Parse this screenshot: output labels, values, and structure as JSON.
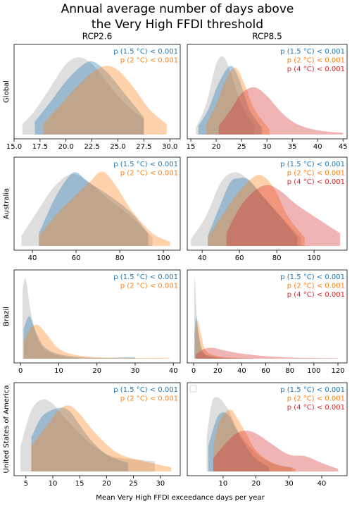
{
  "title": [
    "Annual average number of days above",
    "the Very High FFDI threshold"
  ],
  "xlabel": "Mean Very High FFDI exceedance days per year",
  "chart_data": [
    {
      "type": "area",
      "title": "RCP2.6",
      "ylabel": "Global",
      "xlim": [
        15,
        31
      ],
      "ylim": [
        -0.05,
        1.05
      ],
      "xticks": [
        {
          "value": 15,
          "label": "15.0"
        },
        17.5,
        {
          "value": 20,
          "label": "20.0"
        },
        22.5,
        {
          "value": 25,
          "label": "25.0"
        },
        27.5,
        {
          "value": 30,
          "label": "30.0"
        }
      ],
      "annotations": [
        {
          "text": "p (1.5 °C) < 0.001",
          "color": "#1f77b4"
        },
        {
          "text": "p (2 °C) < 0.001",
          "color": "#ff7f0e"
        }
      ],
      "series": [
        {
          "color": "#a0a0a0",
          "x": [
            15.8,
            17,
            18.5,
            20,
            21.2,
            22.5,
            24,
            25.5,
            27.5
          ],
          "values": [
            0.12,
            0.28,
            0.55,
            0.82,
            0.9,
            0.82,
            0.6,
            0.38,
            0.18
          ]
        },
        {
          "color": "#1f77b4",
          "x": [
            17,
            18.5,
            20,
            21.5,
            22.6,
            24,
            25.5,
            27.5
          ],
          "values": [
            0.15,
            0.38,
            0.62,
            0.8,
            0.85,
            0.72,
            0.5,
            0.2
          ]
        },
        {
          "color": "#ff7f0e",
          "x": [
            17.8,
            19.5,
            21,
            22.5,
            23.8,
            25,
            26.5,
            28,
            29.7
          ],
          "values": [
            0.12,
            0.35,
            0.55,
            0.72,
            0.8,
            0.75,
            0.55,
            0.3,
            0.12
          ]
        }
      ]
    },
    {
      "type": "area",
      "title": "RCP8.5",
      "xlim": [
        14.3,
        45.8
      ],
      "ylim": [
        -0.05,
        1.05
      ],
      "xticks": [
        15,
        20,
        25,
        30,
        35,
        40,
        45
      ],
      "annotations": [
        {
          "text": "p (1.5 °C) < 0.001",
          "color": "#1f77b4"
        },
        {
          "text": "p (2 °C) < 0.001",
          "color": "#ff7f0e"
        },
        {
          "text": "p (4 °C) < 0.001",
          "color": "#d62728"
        }
      ],
      "series": [
        {
          "color": "#a0a0a0",
          "x": [
            16,
            18,
            20,
            21.5,
            23,
            25,
            27.5
          ],
          "values": [
            0.08,
            0.35,
            0.82,
            0.9,
            0.7,
            0.35,
            0.1
          ]
        },
        {
          "color": "#1f77b4",
          "x": [
            16.5,
            18.5,
            20.5,
            22.8,
            24.5,
            26.5,
            29
          ],
          "values": [
            0.1,
            0.3,
            0.6,
            0.8,
            0.65,
            0.3,
            0.08
          ]
        },
        {
          "color": "#ff7f0e",
          "x": [
            18,
            20,
            22,
            23.8,
            25.5,
            27.5,
            30.5
          ],
          "values": [
            0.12,
            0.35,
            0.65,
            0.78,
            0.6,
            0.3,
            0.06
          ]
        },
        {
          "color": "#d62728",
          "x": [
            20.5,
            23,
            25,
            27.5,
            30,
            33,
            36,
            40,
            45
          ],
          "values": [
            0.1,
            0.3,
            0.48,
            0.55,
            0.45,
            0.25,
            0.12,
            0.05,
            0.02
          ]
        }
      ]
    },
    {
      "type": "area",
      "ylabel": "Australia",
      "xlim": [
        31.6,
        107.7
      ],
      "ylim": [
        -0.05,
        1.05
      ],
      "xticks": [
        40,
        60,
        80,
        100
      ],
      "annotations": [
        {
          "text": "p (1.5 °C) < 0.001",
          "color": "#1f77b4"
        },
        {
          "text": "p (2 °C) < 0.001",
          "color": "#ff7f0e"
        }
      ],
      "series": [
        {
          "color": "#a0a0a0",
          "x": [
            35,
            42,
            50,
            58,
            66,
            75,
            85,
            95
          ],
          "values": [
            0.12,
            0.4,
            0.7,
            0.85,
            0.75,
            0.55,
            0.35,
            0.1
          ]
        },
        {
          "color": "#1f77b4",
          "x": [
            43,
            50,
            56,
            60,
            66,
            75,
            85,
            93
          ],
          "values": [
            0.15,
            0.55,
            0.8,
            0.87,
            0.75,
            0.6,
            0.4,
            0.15
          ]
        },
        {
          "color": "#ff7f0e",
          "x": [
            43,
            52,
            60,
            66,
            72,
            78,
            86,
            95,
            103
          ],
          "values": [
            0.12,
            0.4,
            0.6,
            0.75,
            0.88,
            0.72,
            0.4,
            0.15,
            0.05
          ]
        }
      ]
    },
    {
      "type": "area",
      "xlim": [
        32,
        117.7
      ],
      "ylim": [
        -0.05,
        1.05
      ],
      "xticks": [
        40,
        60,
        80,
        100
      ],
      "annotations": [
        {
          "text": "p (1.5 °C) < 0.001",
          "color": "#1f77b4"
        },
        {
          "text": "p (2 °C) < 0.001",
          "color": "#ff7f0e"
        },
        {
          "text": "p (4 °C) < 0.001",
          "color": "#d62728"
        }
      ],
      "series": [
        {
          "color": "#a0a0a0",
          "x": [
            34,
            42,
            50,
            57,
            64,
            72,
            82,
            93
          ],
          "values": [
            0.08,
            0.35,
            0.75,
            0.87,
            0.8,
            0.6,
            0.35,
            0.1
          ]
        },
        {
          "color": "#1f77b4",
          "x": [
            43,
            50,
            55,
            59,
            65,
            72,
            82,
            91
          ],
          "values": [
            0.12,
            0.5,
            0.75,
            0.8,
            0.78,
            0.6,
            0.35,
            0.1
          ]
        },
        {
          "color": "#ff7f0e",
          "x": [
            43,
            52,
            60,
            70,
            78,
            86,
            95
          ],
          "values": [
            0.1,
            0.4,
            0.65,
            0.84,
            0.7,
            0.35,
            0.1
          ]
        },
        {
          "color": "#d62728",
          "x": [
            53,
            60,
            68,
            75,
            82,
            90,
            100,
            114
          ],
          "values": [
            0.15,
            0.45,
            0.65,
            0.72,
            0.65,
            0.5,
            0.35,
            0.15
          ]
        }
      ]
    },
    {
      "type": "area",
      "ylabel": "Brazil",
      "xlim": [
        -1.7,
        41.8
      ],
      "ylim": [
        -0.05,
        1.05
      ],
      "xticks": [
        0,
        10,
        20,
        30,
        40
      ],
      "annotations": [
        {
          "text": "p (1.5 °C) < 0.001",
          "color": "#1f77b4"
        },
        {
          "text": "p (2 °C) < 0.001",
          "color": "#ff7f0e"
        }
      ],
      "series": [
        {
          "color": "#a0a0a0",
          "x": [
            0.5,
            1.3,
            2.5,
            4,
            6,
            9,
            12,
            15
          ],
          "values": [
            0.8,
            0.95,
            0.6,
            0.3,
            0.12,
            0.05,
            0.02,
            0.01
          ]
        },
        {
          "color": "#1f77b4",
          "x": [
            0.8,
            2.3,
            4,
            6,
            9,
            13,
            20,
            30
          ],
          "values": [
            0.35,
            0.5,
            0.32,
            0.15,
            0.07,
            0.03,
            0.01,
            0.02
          ]
        },
        {
          "color": "#ff7f0e",
          "x": [
            0.8,
            2.5,
            4.5,
            7,
            10,
            15,
            25,
            39
          ],
          "values": [
            0.2,
            0.35,
            0.4,
            0.28,
            0.12,
            0.04,
            0.01,
            0.01
          ]
        }
      ]
    },
    {
      "type": "area",
      "xlim": [
        -5.3,
        127.6
      ],
      "ylim": [
        -0.05,
        1.05
      ],
      "xticks": [
        0,
        20,
        40,
        60,
        80,
        100,
        120
      ],
      "annotations": [
        {
          "text": "p (1.5 °C) < 0.001",
          "color": "#1f77b4"
        },
        {
          "text": "p (2 °C) < 0.001",
          "color": "#ff7f0e"
        },
        {
          "text": "p (4 °C) < 0.001",
          "color": "#d62728"
        }
      ],
      "series": [
        {
          "color": "#a0a0a0",
          "x": [
            0.5,
            1,
            3,
            6,
            10,
            20,
            40
          ],
          "values": [
            0.8,
            0.95,
            0.45,
            0.12,
            0.04,
            0.01,
            0.005
          ]
        },
        {
          "color": "#1f77b4",
          "x": [
            0.7,
            2,
            4,
            8,
            15,
            25,
            35
          ],
          "values": [
            0.3,
            0.5,
            0.3,
            0.08,
            0.03,
            0.01,
            0.005
          ]
        },
        {
          "color": "#ff7f0e",
          "x": [
            1,
            3,
            6,
            10,
            20,
            35,
            50
          ],
          "values": [
            0.2,
            0.45,
            0.3,
            0.1,
            0.03,
            0.01,
            0.005
          ]
        },
        {
          "color": "#d62728",
          "x": [
            2,
            8,
            15,
            25,
            40,
            60,
            80,
            100,
            120
          ],
          "values": [
            0.05,
            0.11,
            0.13,
            0.1,
            0.06,
            0.03,
            0.015,
            0.008,
            0.005
          ]
        }
      ]
    },
    {
      "type": "area",
      "ylabel": "United States of America",
      "xlim": [
        2.8,
        33.7
      ],
      "ylim": [
        -0.05,
        1.05
      ],
      "xticks": [
        5,
        10,
        15,
        20,
        25,
        30
      ],
      "annotations": [
        {
          "text": "p (1.5 °C) < 0.001",
          "color": "#1f77b4"
        },
        {
          "text": "p (2 °C) < 0.001",
          "color": "#ff7f0e"
        }
      ],
      "series": [
        {
          "color": "#a0a0a0",
          "x": [
            4,
            6,
            8,
            10,
            12,
            15,
            18,
            21,
            24,
            29
          ],
          "values": [
            0.3,
            0.72,
            0.85,
            0.8,
            0.65,
            0.45,
            0.28,
            0.18,
            0.15,
            0.12
          ]
        },
        {
          "color": "#1f77b4",
          "x": [
            6,
            8,
            11,
            13,
            15,
            17,
            20,
            24
          ],
          "values": [
            0.4,
            0.65,
            0.75,
            0.72,
            0.55,
            0.38,
            0.2,
            0.1
          ]
        },
        {
          "color": "#ff7f0e",
          "x": [
            6,
            9,
            11,
            13,
            15,
            18,
            22,
            27,
            32
          ],
          "values": [
            0.3,
            0.55,
            0.72,
            0.78,
            0.68,
            0.45,
            0.22,
            0.12,
            0.05
          ]
        }
      ]
    },
    {
      "type": "area",
      "legend": "upper left",
      "xlim": [
        -0.9,
        47.7
      ],
      "ylim": [
        -0.05,
        1.05
      ],
      "xticks": [
        10,
        20,
        30,
        40
      ],
      "annotations": [
        {
          "text": "p (1.5 °C) < 0.001",
          "color": "#1f77b4"
        },
        {
          "text": "p (2 °C) < 0.001",
          "color": "#ff7f0e"
        },
        {
          "text": "p (4 °C) < 0.001",
          "color": "#d62728"
        }
      ],
      "series": [
        {
          "color": "#a0a0a0",
          "x": [
            5,
            6.5,
            8,
            10,
            12,
            15,
            20,
            25,
            31
          ],
          "values": [
            0.4,
            0.8,
            0.88,
            0.82,
            0.7,
            0.45,
            0.22,
            0.1,
            0.05
          ]
        },
        {
          "color": "#1f77b4",
          "x": [
            5.5,
            8,
            10,
            12,
            14,
            17,
            20,
            24
          ],
          "values": [
            0.3,
            0.62,
            0.7,
            0.65,
            0.5,
            0.3,
            0.15,
            0.05
          ]
        },
        {
          "color": "#ff7f0e",
          "x": [
            7,
            9,
            12,
            14,
            17,
            20,
            25,
            32
          ],
          "values": [
            0.3,
            0.6,
            0.73,
            0.65,
            0.45,
            0.25,
            0.1,
            0.03
          ]
        },
        {
          "color": "#d62728",
          "x": [
            7,
            10,
            14,
            17,
            20,
            25,
            30,
            35,
            40,
            45
          ],
          "values": [
            0.15,
            0.3,
            0.45,
            0.48,
            0.45,
            0.32,
            0.2,
            0.18,
            0.1,
            0.03
          ]
        }
      ]
    }
  ]
}
